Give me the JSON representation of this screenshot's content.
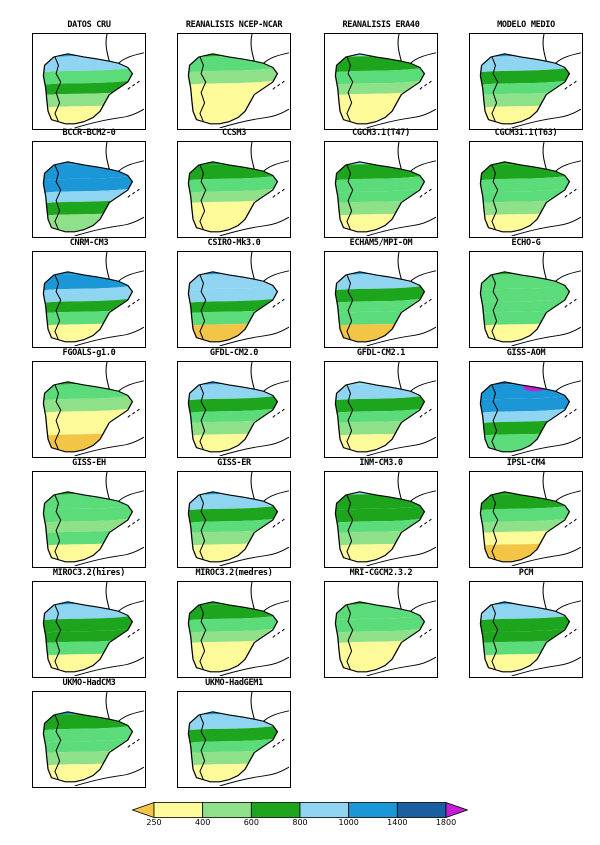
{
  "panels": [
    {
      "title": "DATOS CRU",
      "colors": [
        "#1b96d6",
        "#8fd5f2",
        "#5bdb7a",
        "#1ea51e",
        "#8ee089",
        "#fdfa9a"
      ]
    },
    {
      "title": "REANALISIS NCEP-NCAR",
      "colors": [
        "#1ea51e",
        "#5bdb7a",
        "#8ee089",
        "#fdfa9a",
        "#fdfa9a",
        "#fdfa9a"
      ]
    },
    {
      "title": "REANALISIS ERA40",
      "colors": [
        "#8fd5f2",
        "#1ea51e",
        "#5bdb7a",
        "#8ee089",
        "#fdfa9a",
        "#fdfa9a"
      ]
    },
    {
      "title": "MODELO MEDIO",
      "colors": [
        "#1b96d6",
        "#8fd5f2",
        "#1ea51e",
        "#5bdb7a",
        "#8ee089",
        "#fdfa9a"
      ]
    },
    {
      "title": "BCCR-BCM2-0",
      "colors": [
        "#1b96d6",
        "#1b96d6",
        "#1b96d6",
        "#8fd5f2",
        "#1ea51e",
        "#8ee089"
      ]
    },
    {
      "title": "CCSM3",
      "colors": [
        "#1ea51e",
        "#1ea51e",
        "#5bdb7a",
        "#8ee089",
        "#fdfa9a",
        "#fdfa9a"
      ]
    },
    {
      "title": "CGCM3.1(T47)",
      "colors": [
        "#8fd5f2",
        "#1ea51e",
        "#5bdb7a",
        "#5bdb7a",
        "#8ee089",
        "#fdfa9a"
      ]
    },
    {
      "title": "CGCM31.1(T63)",
      "colors": [
        "#1ea51e",
        "#1ea51e",
        "#5bdb7a",
        "#5bdb7a",
        "#8ee089",
        "#fdfa9a"
      ]
    },
    {
      "title": "CNRM-CM3",
      "colors": [
        "#1b96d6",
        "#1b96d6",
        "#8fd5f2",
        "#1ea51e",
        "#5bdb7a",
        "#fdfa9a"
      ]
    },
    {
      "title": "CSIRO-Mk3.0",
      "colors": [
        "#1b96d6",
        "#8fd5f2",
        "#8fd5f2",
        "#1ea51e",
        "#5bdb7a",
        "#f3c547"
      ]
    },
    {
      "title": "ECHAM5/MPI-OM",
      "colors": [
        "#1b96d6",
        "#8fd5f2",
        "#1ea51e",
        "#5bdb7a",
        "#5bdb7a",
        "#f3c547"
      ]
    },
    {
      "title": "ECHO-G",
      "colors": [
        "#1ea51e",
        "#5bdb7a",
        "#5bdb7a",
        "#5bdb7a",
        "#5bdb7a",
        "#fdfa9a"
      ]
    },
    {
      "title": "FGOALS-g1.0",
      "colors": [
        "#1ea51e",
        "#5bdb7a",
        "#8ee089",
        "#fdfa9a",
        "#fdfa9a",
        "#f3c547"
      ]
    },
    {
      "title": "GFDL-CM2.0",
      "colors": [
        "#1b96d6",
        "#8fd5f2",
        "#1ea51e",
        "#5bdb7a",
        "#8ee089",
        "#fdfa9a"
      ]
    },
    {
      "title": "GFDL-CM2.1",
      "colors": [
        "#8fd5f2",
        "#8fd5f2",
        "#1ea51e",
        "#5bdb7a",
        "#8ee089",
        "#fdfa9a"
      ]
    },
    {
      "title": "GISS-AOM",
      "colors": [
        "#1a5fa0",
        "#1b96d6",
        "#1b96d6",
        "#8fd5f2",
        "#1ea51e",
        "#5bdb7a"
      ]
    },
    {
      "title": "GISS-EH",
      "colors": [
        "#1ea51e",
        "#5bdb7a",
        "#5bdb7a",
        "#8ee089",
        "#5bdb7a",
        "#fdfa9a"
      ]
    },
    {
      "title": "GISS-ER",
      "colors": [
        "#1b96d6",
        "#8fd5f2",
        "#1ea51e",
        "#5bdb7a",
        "#8ee089",
        "#fdfa9a"
      ]
    },
    {
      "title": "INM-CM3.0",
      "colors": [
        "#8fd5f2",
        "#1ea51e",
        "#1ea51e",
        "#5bdb7a",
        "#8ee089",
        "#fdfa9a"
      ]
    },
    {
      "title": "IPSL-CM4",
      "colors": [
        "#1ea51e",
        "#1ea51e",
        "#5bdb7a",
        "#8ee089",
        "#fdfa9a",
        "#f3c547"
      ]
    },
    {
      "title": "MIROC3.2(hires)",
      "colors": [
        "#1b96d6",
        "#8fd5f2",
        "#1ea51e",
        "#1ea51e",
        "#5bdb7a",
        "#fdfa9a"
      ]
    },
    {
      "title": "MIROC3.2(medres)",
      "colors": [
        "#1ea51e",
        "#1ea51e",
        "#5bdb7a",
        "#8ee089",
        "#fdfa9a",
        "#fdfa9a"
      ]
    },
    {
      "title": "MRI-CGCM2.3.2",
      "colors": [
        "#1ea51e",
        "#5bdb7a",
        "#5bdb7a",
        "#8ee089",
        "#fdfa9a",
        "#fdfa9a"
      ]
    },
    {
      "title": "PCM",
      "colors": [
        "#1b96d6",
        "#8fd5f2",
        "#1ea51e",
        "#1ea51e",
        "#5bdb7a",
        "#fdfa9a"
      ]
    },
    {
      "title": "UKMO-HadCM3",
      "colors": [
        "#1b96d6",
        "#1ea51e",
        "#5bdb7a",
        "#5bdb7a",
        "#8ee089",
        "#fdfa9a"
      ]
    },
    {
      "title": "UKMO-HadGEM1",
      "colors": [
        "#1b96d6",
        "#8fd5f2",
        "#1ea51e",
        "#5bdb7a",
        "#8ee089",
        "#fdfa9a"
      ]
    }
  ],
  "colorbar": {
    "colors": [
      "#f3c547",
      "#fdfa9a",
      "#8ee089",
      "#1ea51e",
      "#8fd5f2",
      "#1b96d6",
      "#1a5fa0",
      "#c41ed6"
    ],
    "ticks": [
      "250",
      "400",
      "600",
      "800",
      "1000",
      "1400",
      "1800"
    ]
  }
}
